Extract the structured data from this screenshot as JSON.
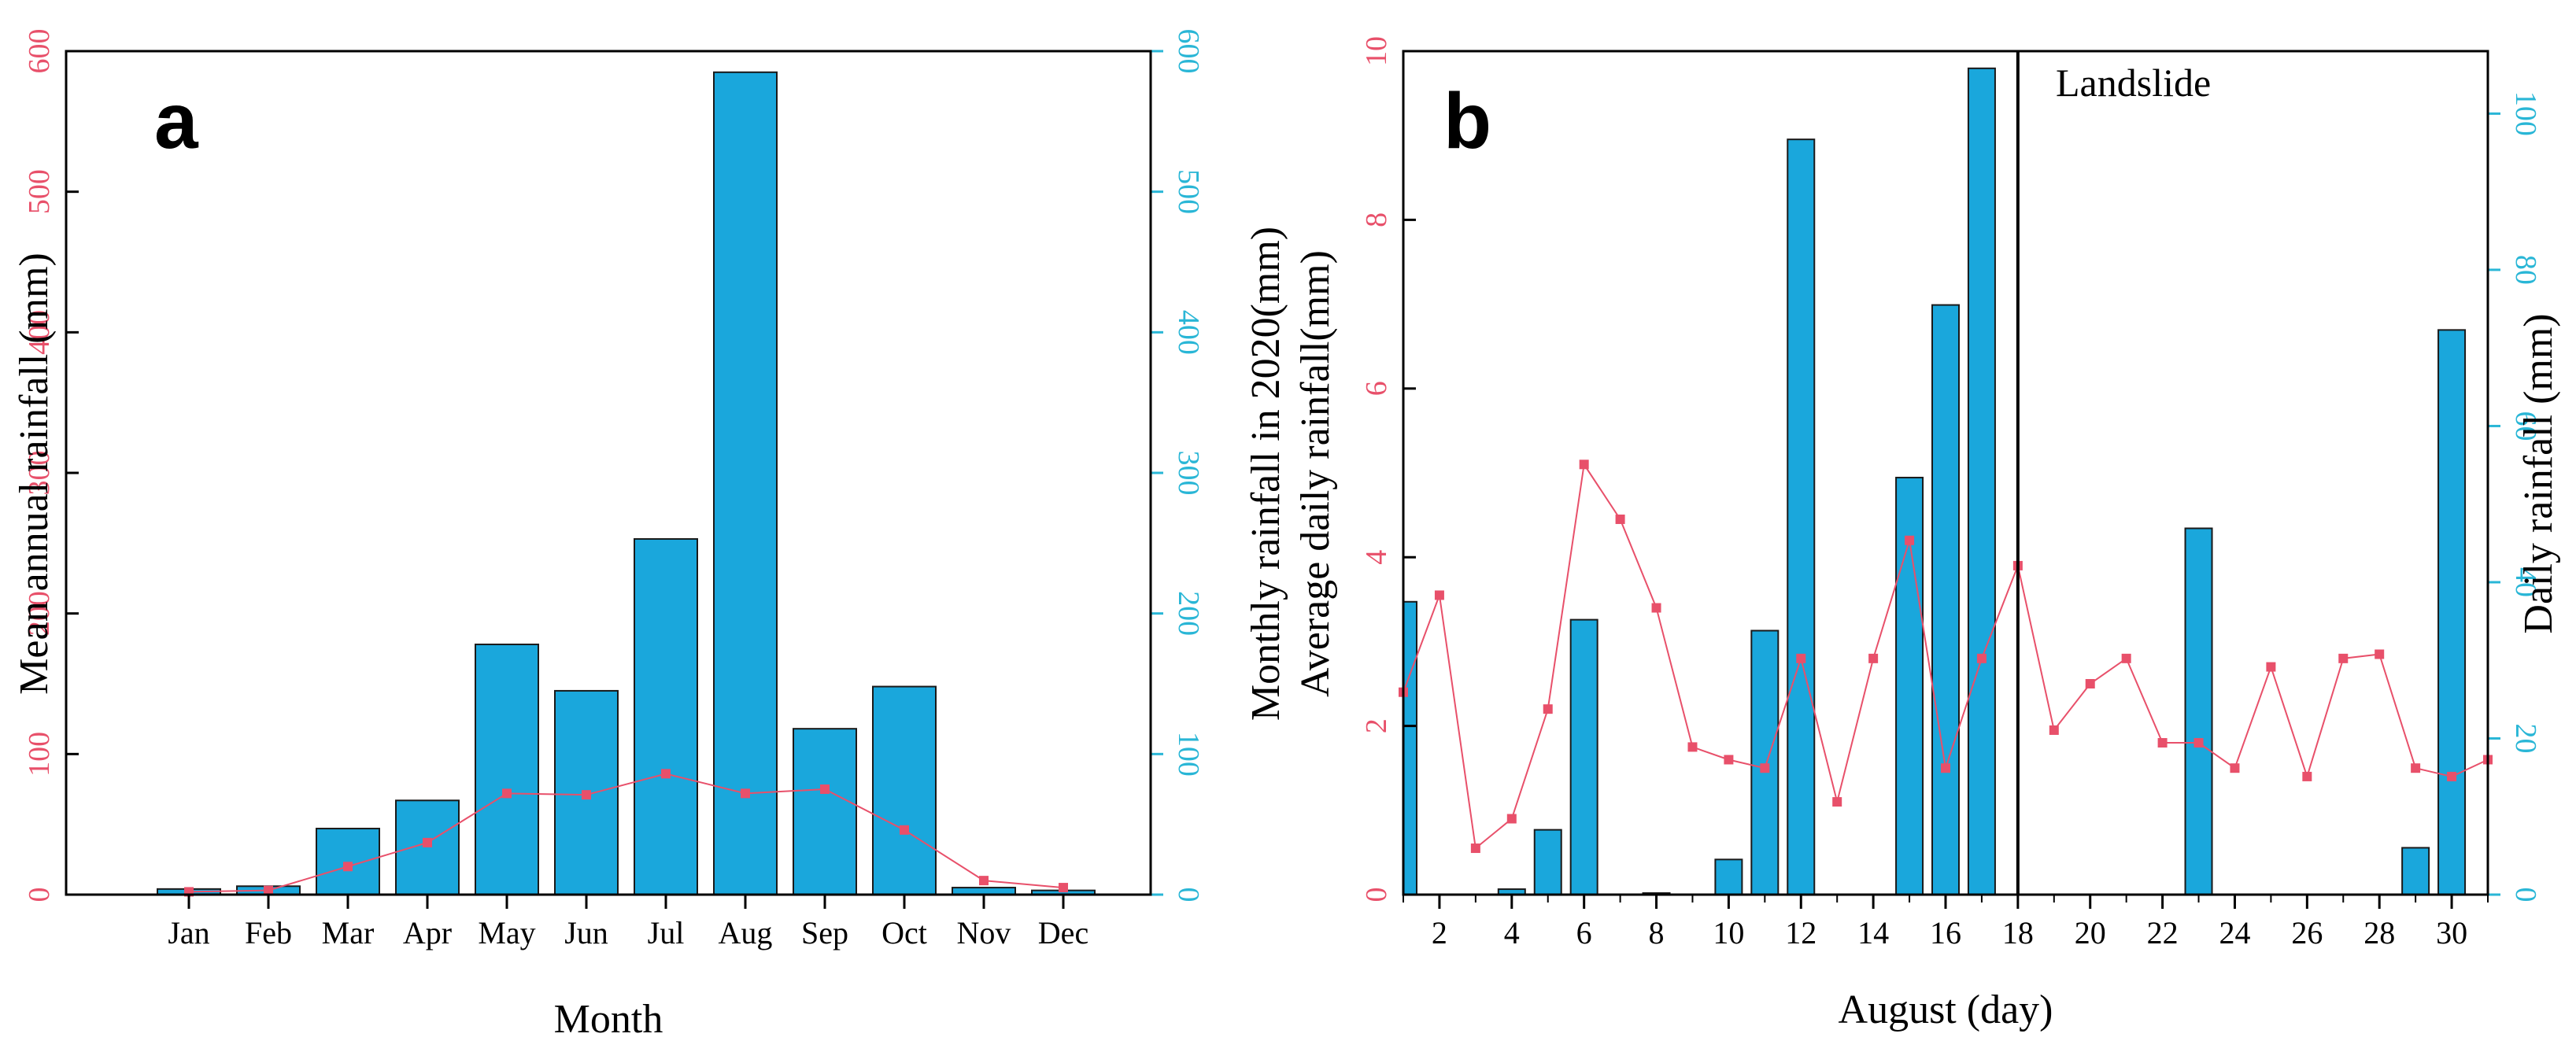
{
  "colors": {
    "bar_fill": "#1aa7dc",
    "bar_stroke": "#1a1a1a",
    "line": "#e8506a",
    "left_axis": "#e8506a",
    "right_axis": "#29b6d6",
    "frame": "#000000"
  },
  "chart_data": [
    {
      "id": "a",
      "panel_label": "a",
      "type": "bar",
      "title": "",
      "xlabel": "Month",
      "ylabel_left": "Mean annual rainfall (mm)",
      "ylabel_right": "Monthly rainfall in 2020(mm)",
      "categories": [
        "Jan",
        "Feb",
        "Mar",
        "Apr",
        "May",
        "Jun",
        "Jul",
        "Aug",
        "Sep",
        "Oct",
        "Nov",
        "Dec"
      ],
      "ylim_left": [
        0,
        600
      ],
      "ylim_right": [
        0,
        600
      ],
      "yticks_left": [
        0,
        100,
        200,
        300,
        400,
        500,
        600
      ],
      "yticks_right": [
        0,
        100,
        200,
        300,
        400,
        500,
        600
      ],
      "ytick_labels_left": [
        "0",
        "100",
        "200",
        "300",
        "400",
        "500",
        "600"
      ],
      "ytick_labels_right": [
        "0",
        "100",
        "200",
        "300",
        "400",
        "500",
        "600"
      ],
      "series": [
        {
          "name": "Monthly rainfall in 2020",
          "kind": "bar",
          "axis": "right",
          "values": [
            4,
            6,
            47,
            67,
            178,
            145,
            253,
            585,
            118,
            148,
            5,
            3
          ]
        },
        {
          "name": "Mean annual rainfall",
          "kind": "line",
          "axis": "left",
          "values": [
            2,
            3,
            20,
            37,
            72,
            71,
            86,
            72,
            75,
            46,
            10,
            5
          ]
        }
      ]
    },
    {
      "id": "b",
      "panel_label": "b",
      "type": "bar",
      "title": "",
      "xlabel": "August (day)",
      "ylabel_left": "Average daily rainfall(mm)",
      "ylabel_right": "Daily rainfall (mm)",
      "annotation": "Landslide",
      "landslide_day": 18,
      "xlim": [
        1,
        31
      ],
      "xticks": [
        2,
        4,
        6,
        8,
        10,
        12,
        14,
        16,
        18,
        20,
        22,
        24,
        26,
        28,
        30
      ],
      "xtick_labels": [
        "2",
        "4",
        "6",
        "8",
        "10",
        "12",
        "14",
        "16",
        "18",
        "20",
        "22",
        "24",
        "26",
        "28",
        "30"
      ],
      "ylim_left": [
        0,
        10
      ],
      "ylim_right": [
        0,
        108
      ],
      "yticks_left": [
        0,
        2,
        4,
        6,
        8,
        10
      ],
      "yticks_right": [
        0,
        20,
        40,
        60,
        80,
        100
      ],
      "ytick_labels_left": [
        "0",
        "2",
        "4",
        "6",
        "8",
        "10"
      ],
      "ytick_labels_right": [
        "0",
        "20",
        "40",
        "60",
        "80",
        "100"
      ],
      "series": [
        {
          "name": "Daily rainfall",
          "kind": "bar",
          "axis": "right",
          "x": [
            1,
            2,
            3,
            4,
            5,
            6,
            7,
            8,
            9,
            10,
            11,
            12,
            13,
            14,
            15,
            16,
            17,
            18,
            19,
            20,
            21,
            22,
            23,
            24,
            25,
            26,
            27,
            28,
            29,
            30
          ],
          "values": [
            37.5,
            0,
            0,
            0.7,
            8.3,
            35.2,
            0,
            0.2,
            0,
            4.5,
            33.8,
            96.7,
            0,
            0,
            53.4,
            75.5,
            105.8,
            0,
            0,
            0,
            0,
            0,
            46.9,
            0,
            0,
            0,
            0,
            0,
            6,
            72.3
          ]
        },
        {
          "name": "Average daily rainfall",
          "kind": "line",
          "axis": "left",
          "x": [
            1,
            2,
            3,
            4,
            5,
            6,
            7,
            8,
            9,
            10,
            11,
            12,
            13,
            14,
            15,
            16,
            17,
            18,
            19,
            20,
            21,
            22,
            23,
            24,
            25,
            26,
            27,
            28,
            29,
            30,
            31
          ],
          "values": [
            2.4,
            3.55,
            0.55,
            0.9,
            2.2,
            5.1,
            4.45,
            3.4,
            1.75,
            1.6,
            1.5,
            2.8,
            1.1,
            2.8,
            4.2,
            1.5,
            2.8,
            3.9,
            1.95,
            2.5,
            2.8,
            1.8,
            1.8,
            1.5,
            2.7,
            1.4,
            2.8,
            2.85,
            1.5,
            1.4,
            1.6
          ]
        }
      ]
    }
  ]
}
